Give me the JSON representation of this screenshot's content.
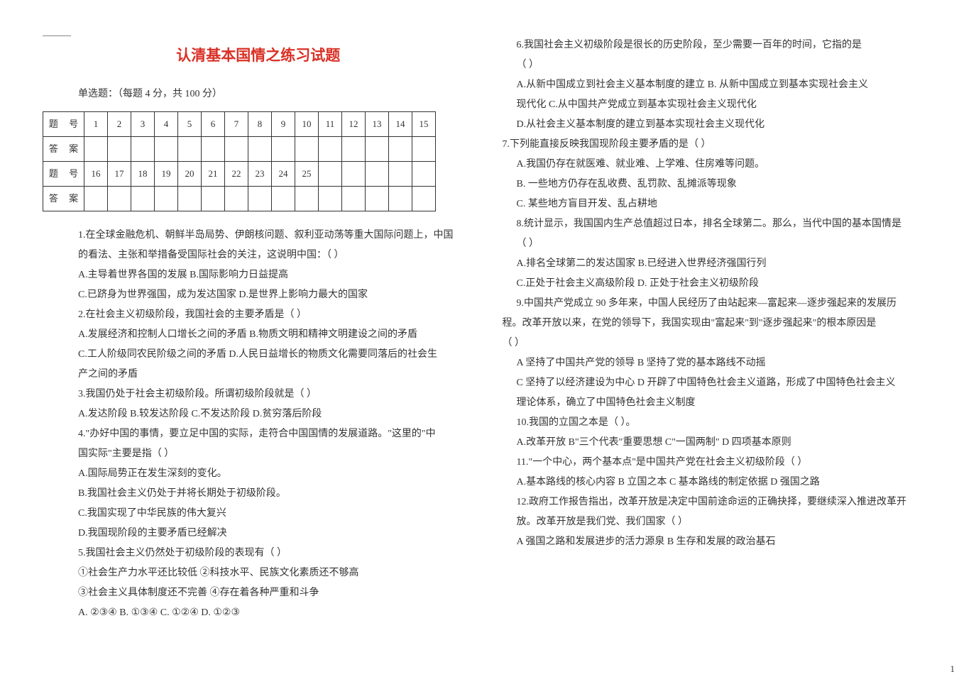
{
  "title": "认清基本国情之练习试题",
  "subtitle": "单选题：（每题 4 分，共 100 分）",
  "grid": {
    "rowLabels": {
      "num": "题  号",
      "ans": "答  案"
    },
    "row1": [
      "1",
      "2",
      "3",
      "4",
      "5",
      "6",
      "7",
      "8",
      "9",
      "10",
      "11",
      "12",
      "13",
      "14",
      "15"
    ],
    "row2": [
      "16",
      "17",
      "18",
      "19",
      "20",
      "21",
      "22",
      "23",
      "24",
      "25",
      "",
      "",
      "",
      "",
      ""
    ]
  },
  "leftLines": [
    "1.在全球金融危机、朝鲜半岛局势、伊朗核问题、叙利亚动荡等重大国际问题上，中国",
    "的看法、主张和举措备受国际社会的关注，这说明中国：（      ）",
    "A.主导着世界各国的发展             B.国际影响力日益提高",
    "C.已跻身为世界强国，成为发达国家   D.是世界上影响力最大的国家",
    "2.在社会主义初级阶段，我国社会的主要矛盾是（      ）",
    "A.发展经济和控制人口增长之间的矛盾  B.物质文明和精神文明建设之间的矛盾",
    "C.工人阶级同农民阶级之间的矛盾  D.人民日益增长的物质文化需要同落后的社会生",
    "产之间的矛盾",
    "3.我国仍处于社会主初级阶段。所谓初级阶段就是（        ）",
    "A.发达阶段     B.较发达阶段      C.不发达阶段     D.贫穷落后阶段",
    "4.\"办好中国的事情，要立足中国的实际，走符合中国国情的发展道路。\"这里的\"中",
    "国实际\"主要是指（       ）",
    "A.国际局势正在发生深刻的变化。",
    "B.我国社会主义仍处于并将长期处于初级阶段。",
    "C.我国实现了中华民族的伟大复兴",
    "D.我国现阶段的主要矛盾已经解决",
    "5.我国社会主义仍然处于初级阶段的表现有（      ）",
    "①社会生产力水平还比较低    ②科技水平、民族文化素质还不够高",
    "③社会主义具体制度还不完善  ④存在着各种严重和斗争",
    "A. ②③④  B. ①③④   C. ①②④  D. ①②③"
  ],
  "rightLines": [
    {
      "t": "6.我国社会主义初级阶段是很长的历史阶段，至少需要一百年的时间，它指的是",
      "cls": ""
    },
    {
      "t": "（        ）",
      "cls": ""
    },
    {
      "t": "A.从新中国成立到社会主义基本制度的建立   B. 从新中国成立到基本实现社会主义",
      "cls": ""
    },
    {
      "t": "现代化       C.从中国共产党成立到基本实现社会主义现代化",
      "cls": ""
    },
    {
      "t": "D.从社会主义基本制度的建立到基本实现社会主义现代化",
      "cls": ""
    },
    {
      "t": "7.下列能直接反映我国现阶段主要矛盾的是（       ）",
      "cls": "flush"
    },
    {
      "t": "A.我国仍存在就医难、就业难、上学难、住房难等问题。",
      "cls": ""
    },
    {
      "t": "B. 一些地方仍存在乱收费、乱罚款、乱摊派等现象",
      "cls": ""
    },
    {
      "t": "C. 某些地方盲目开发、乱占耕地",
      "cls": ""
    },
    {
      "t": "8.统计显示，我国国内生产总值超过日本，排名全球第二。那么，当代中国的基本国情是",
      "cls": ""
    },
    {
      "t": "（      ）",
      "cls": ""
    },
    {
      "t": "A.排名全球第二的发达国家       B.已经进入世界经济强国行列",
      "cls": ""
    },
    {
      "t": "C.正处于社会主义高级阶段       D. 正处于社会主义初级阶段",
      "cls": ""
    },
    {
      "t": "9.中国共产党成立 90 多年来，中国人民经历了由站起来—富起来—逐步强起来的发展历",
      "cls": ""
    },
    {
      "t": "程。改革开放以来，在党的领导下，我国实现由\"富起来\"到\"逐步强起来\"的根本原因是",
      "cls": "flush"
    },
    {
      "t": "（       ）",
      "cls": "flush"
    },
    {
      "t": "A 坚持了中国共产党的领导       B 坚持了党的基本路线不动摇",
      "cls": ""
    },
    {
      "t": "C 坚持了以经济建设为中心    D 开辟了中国特色社会主义道路，形成了中国特色社会主义",
      "cls": ""
    },
    {
      "t": "理论体系，确立了中国特色社会主义制度",
      "cls": ""
    },
    {
      "t": "10.我国的立国之本是（     ）。",
      "cls": ""
    },
    {
      "t": "A.改革开放   B\"三个代表\"重要思想    C\"一国两制\"    D 四项基本原则",
      "cls": ""
    },
    {
      "t": "11.\"一个中心，两个基本点\"是中国共产党在社会主义初级阶段（      ）",
      "cls": ""
    },
    {
      "t": "A.基本路线的核心内容     B 立国之本    C 基本路线的制定依据   D 强国之路",
      "cls": ""
    },
    {
      "t": "12.政府工作报告指出，改革开放是决定中国前途命运的正确抉择，要继续深入推进改革开",
      "cls": ""
    },
    {
      "t": "放。改革开放是我们党、我们国家（     ）",
      "cls": ""
    },
    {
      "t": "A 强国之路和发展进步的活力源泉  B 生存和发展的政治基石",
      "cls": ""
    }
  ],
  "pageNum": "1"
}
